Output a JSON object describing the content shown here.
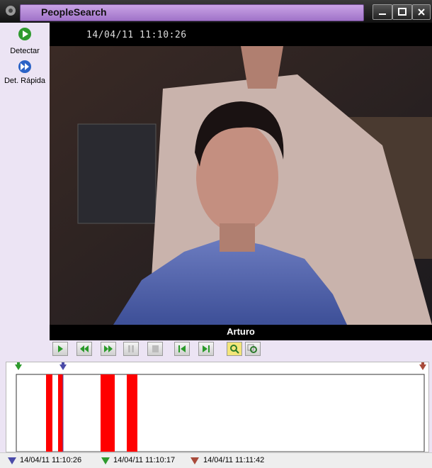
{
  "window": {
    "title": "PeopleSearch"
  },
  "toolbar": [
    {
      "label": "Detectar"
    },
    {
      "label": "Det. Rápida"
    }
  ],
  "video": {
    "timestamp": "14/04/11 11:10:26",
    "caption": "Arturo"
  },
  "status": [
    "14/04/11 11:10:26",
    "14/04/11 11:10:17",
    "14/04/11 11:11:42"
  ]
}
